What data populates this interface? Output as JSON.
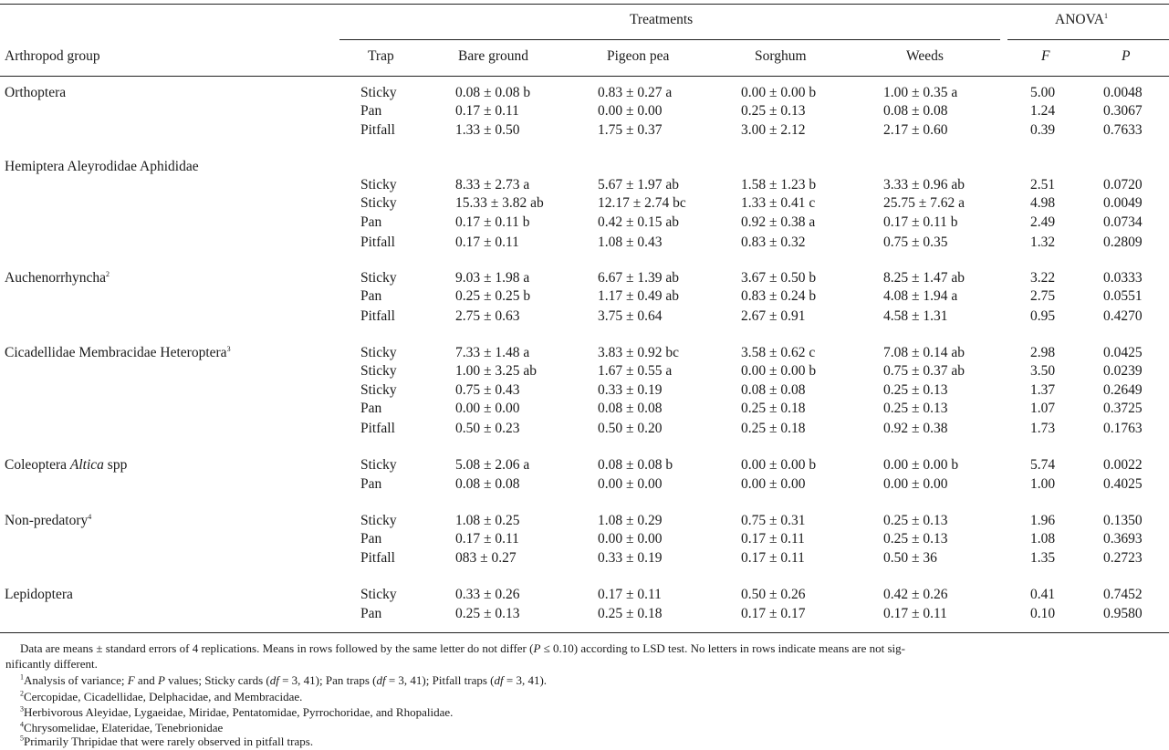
{
  "headers": {
    "treatments": "Treatments",
    "anova": "ANOVA",
    "anova_sup": "1",
    "arthropod_group": "Arthropod group",
    "trap": "Trap",
    "bare_ground": "Bare ground",
    "pigeon_pea": "Pigeon pea",
    "sorghum": "Sorghum",
    "weeds": "Weeds",
    "f": "F",
    "p": "P"
  },
  "groups": [
    {
      "name": "Orthoptera",
      "sup": ""
    },
    {
      "name": "Hemiptera Aleyrodidae Aphididae",
      "sup": ""
    },
    {
      "name": "Auchenorrhyncha",
      "sup": "2"
    },
    {
      "name": "Cicadellidae Membracidae Heteroptera",
      "sup": "3"
    },
    {
      "name": "Coleoptera ",
      "italic": "Altica",
      "rest": " spp",
      "sup": ""
    },
    {
      "name": "Non-predatory",
      "sup": "4"
    },
    {
      "name": "Lepidoptera",
      "sup": ""
    }
  ],
  "rows": [
    [
      "Sticky",
      "0.08 ± 0.08 b",
      "0.83 ± 0.27 a",
      "0.00 ± 0.00 b",
      "1.00 ± 0.35 a",
      "5.00",
      "0.0048"
    ],
    [
      "Pan",
      "0.17 ± 0.11",
      "0.00 ± 0.00",
      "0.25 ± 0.13",
      "0.08 ± 0.08",
      "1.24",
      "0.3067"
    ],
    [
      "Pitfall",
      "1.33 ± 0.50",
      "1.75 ± 0.37",
      "3.00 ± 2.12",
      "2.17 ± 0.60",
      "0.39",
      "0.7633"
    ],
    [
      "Sticky",
      "8.33 ± 2.73 a",
      "5.67 ± 1.97 ab",
      "1.58 ± 1.23 b",
      "3.33 ± 0.96 ab",
      "2.51",
      "0.0720"
    ],
    [
      "Sticky",
      "15.33 ± 3.82 ab",
      "12.17 ± 2.74 bc",
      "1.33 ± 0.41 c",
      "25.75 ± 7.62 a",
      "4.98",
      "0.0049"
    ],
    [
      "Pan",
      "0.17 ± 0.11 b",
      "0.42 ± 0.15 ab",
      "0.92 ± 0.38 a",
      "0.17 ± 0.11 b",
      "2.49",
      "0.0734"
    ],
    [
      "Pitfall",
      "0.17 ± 0.11",
      "1.08 ± 0.43",
      "0.83 ± 0.32",
      "0.75 ± 0.35",
      "1.32",
      "0.2809"
    ],
    [
      "Sticky",
      "9.03 ± 1.98 a",
      "6.67 ± 1.39 ab",
      "3.67 ± 0.50 b",
      "8.25 ± 1.47 ab",
      "3.22",
      "0.0333"
    ],
    [
      "Pan",
      "0.25 ± 0.25 b",
      "1.17 ± 0.49 ab",
      "0.83 ± 0.24 b",
      "4.08 ± 1.94 a",
      "2.75",
      "0.0551"
    ],
    [
      "Pitfall",
      "2.75 ± 0.63",
      "3.75 ± 0.64",
      "2.67 ± 0.91",
      "4.58 ± 1.31",
      "0.95",
      "0.4270"
    ],
    [
      "Sticky",
      "7.33 ± 1.48 a",
      "3.83 ± 0.92 bc",
      "3.58 ± 0.62 c",
      "7.08 ± 0.14 ab",
      "2.98",
      "0.0425"
    ],
    [
      "Sticky",
      "1.00 ± 3.25 ab",
      "1.67 ± 0.55 a",
      "0.00 ± 0.00 b",
      "0.75 ± 0.37 ab",
      "3.50",
      "0.0239"
    ],
    [
      "Sticky",
      "0.75 ± 0.43",
      "0.33 ± 0.19",
      "0.08 ± 0.08",
      "0.25 ± 0.13",
      "1.37",
      "0.2649"
    ],
    [
      "Pan",
      "0.00 ± 0.00",
      "0.08 ± 0.08",
      "0.25 ± 0.18",
      "0.25 ± 0.13",
      "1.07",
      "0.3725"
    ],
    [
      "Pitfall",
      "0.50 ± 0.23",
      "0.50 ± 0.20",
      "0.25 ± 0.18",
      "0.92 ± 0.38",
      "1.73",
      "0.1763"
    ],
    [
      "Sticky",
      "5.08 ± 2.06 a",
      "0.08 ± 0.08 b",
      "0.00 ± 0.00 b",
      "0.00 ± 0.00 b",
      "5.74",
      "0.0022"
    ],
    [
      "Pan",
      "0.08 ± 0.08",
      "0.00 ± 0.00",
      "0.00 ± 0.00",
      "0.00 ± 0.00",
      "1.00",
      "0.4025"
    ],
    [
      "Sticky",
      "1.08 ± 0.25",
      "1.08 ± 0.29",
      "0.75 ± 0.31",
      "0.25 ± 0.13",
      "1.96",
      "0.1350"
    ],
    [
      "Pan",
      "0.17 ± 0.11",
      "0.00 ± 0.00",
      "0.17 ± 0.11",
      "0.25 ± 0.13",
      "1.08",
      "0.3693"
    ],
    [
      "Pitfall",
      "083 ± 0.27",
      "0.33 ± 0.19",
      "0.17 ± 0.11",
      "0.50 ± 36",
      "1.35",
      "0.2723"
    ],
    [
      "Sticky",
      "0.33 ± 0.26",
      "0.17 ± 0.11",
      "0.50 ± 0.26",
      "0.42 ± 0.26",
      "0.41",
      "0.7452"
    ],
    [
      "Pan",
      "0.25 ± 0.13",
      "0.25 ± 0.18",
      "0.17 ± 0.17",
      "0.17 ± 0.11",
      "0.10",
      "0.9580"
    ]
  ],
  "footnotes": {
    "note_line1_a": "Data are means ± standard errors of 4 replications. Means in rows followed by the same letter do not differ (",
    "note_line1_p": "P",
    "note_line1_b": " ≤ 0.10) according to LSD test. No letters in rows indicate means are not sig-",
    "note_line2": "nificantly different.",
    "fn1_sup": "1",
    "fn1_a": "Analysis of variance; ",
    "fn1_f": "F",
    "fn1_and": " and ",
    "fn1_p": "P",
    "fn1_b": " values; Sticky cards (",
    "fn1_df1": "df",
    "fn1_c": " = 3, 41); Pan traps (",
    "fn1_df2": "df",
    "fn1_d": " = 3, 41); Pitfall traps (",
    "fn1_df3": "df",
    "fn1_e": " = 3, 41).",
    "fn2_sup": "2",
    "fn2": "Cercopidae, Cicadellidae, Delphacidae, and Membracidae.",
    "fn3_sup": "3",
    "fn3": "Herbivorous Aleyidae, Lygaeidae, Miridae, Pentatomidae, Pyrrochoridae, and Rhopalidae.",
    "fn4_sup": "4",
    "fn4": "Chrysomelidae, Elateridae, Tenebrionidae",
    "fn5_sup": "5",
    "fn5": "Primarily Thripidae that were rarely observed in pitfall traps."
  }
}
